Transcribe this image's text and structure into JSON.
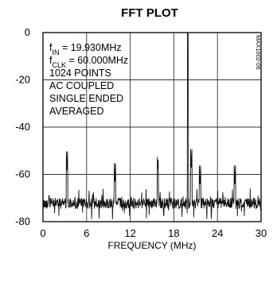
{
  "chart_data": {
    "type": "line",
    "title": "FFT PLOT",
    "xlabel": "FREQUENCY (MHz)",
    "ylabel": "",
    "xlim": [
      0,
      30
    ],
    "ylim": [
      -80,
      0
    ],
    "x_ticks": [
      0,
      6,
      12,
      18,
      24,
      30
    ],
    "x_tick_labels": [
      "0",
      "6",
      "12",
      "18",
      "24",
      "30"
    ],
    "y_ticks": [
      0,
      -20,
      -40,
      -60,
      -80
    ],
    "y_tick_labels": [
      "0",
      "-20",
      "-40",
      "-60",
      "-80"
    ],
    "grid": true,
    "figure_id": "MAX1002-06",
    "annotations": [
      {
        "main": "f",
        "sub": "IN",
        "rest": " = 19.930MHz"
      },
      {
        "main": "f",
        "sub": "CLK",
        "rest": " = 60.000MHz"
      },
      {
        "main": "1024 POINTS",
        "sub": "",
        "rest": ""
      },
      {
        "main": "AC COUPLED",
        "sub": "",
        "rest": ""
      },
      {
        "main": "SINGLE ENDED",
        "sub": "",
        "rest": ""
      },
      {
        "main": "AVERAGED",
        "sub": "",
        "rest": ""
      }
    ],
    "noise_floor_dB": [
      -70,
      -75
    ],
    "spurs": [
      {
        "x": 3.3,
        "y": -58
      },
      {
        "x": 9.9,
        "y": -63
      },
      {
        "x": 15.8,
        "y": -59
      },
      {
        "x": 19.93,
        "y": -6
      },
      {
        "x": 20.4,
        "y": -57
      },
      {
        "x": 21.6,
        "y": -64
      },
      {
        "x": 26.4,
        "y": -64
      }
    ],
    "series": [
      {
        "values": []
      }
    ]
  }
}
